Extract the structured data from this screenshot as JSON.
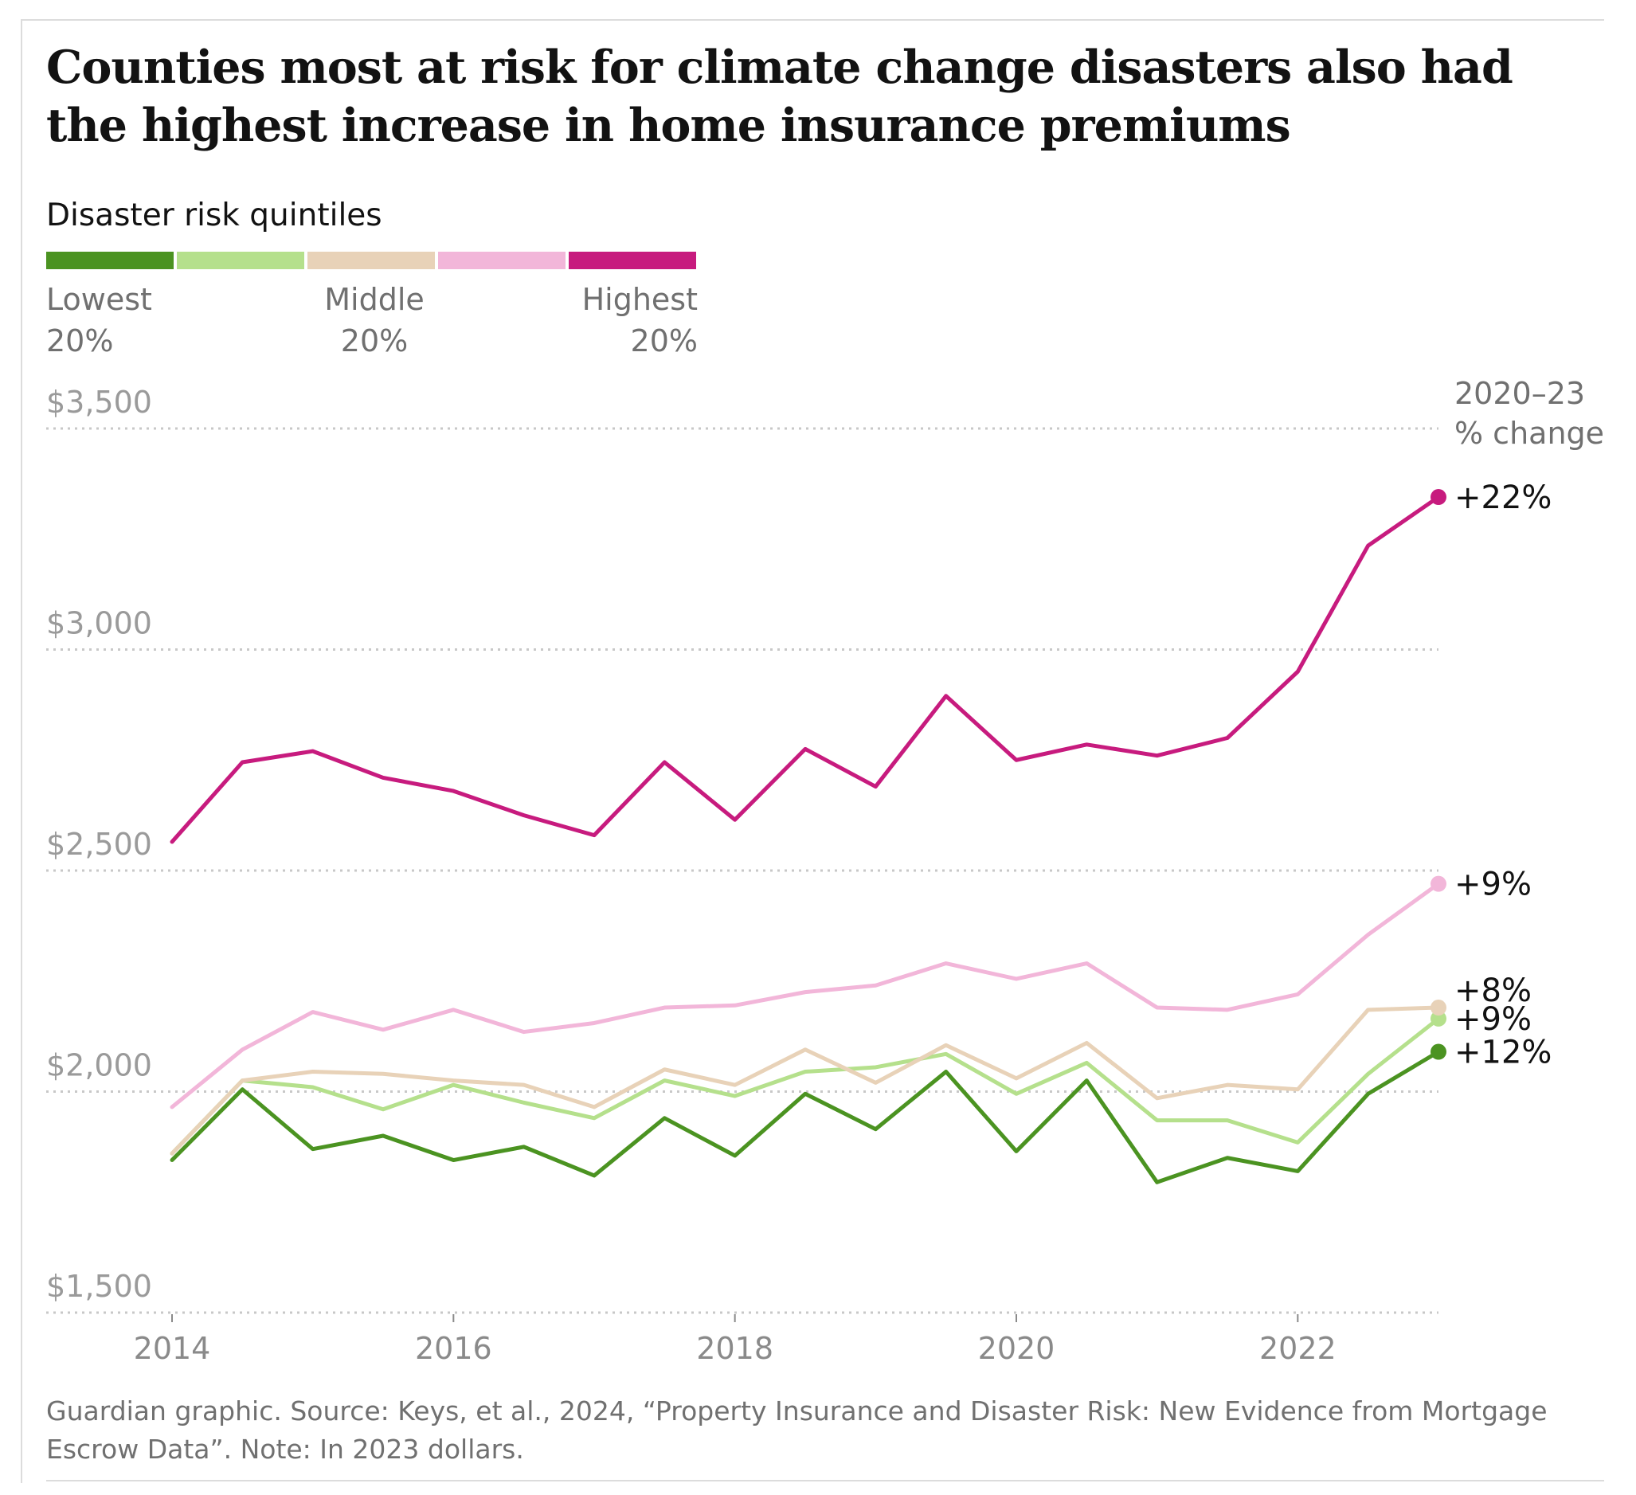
{
  "title": "Counties most at risk for climate change disasters also had the highest increase in home insurance premiums",
  "legend": {
    "title": "Disaster risk quintiles",
    "colors": [
      "#4b9321",
      "#b5e08c",
      "#e8d2b8",
      "#f2b6d9",
      "#c71b7e"
    ],
    "low_label": "Lowest",
    "low_sub": "20%",
    "mid_label": "Middle",
    "mid_sub": "20%",
    "high_label": "Highest",
    "high_sub": "20%"
  },
  "annotation_header": [
    "2020–23",
    "% change"
  ],
  "footnote": "Guardian graphic. Source: Keys, et al., 2024, “Property Insurance and Disaster Risk: New Evidence from Mortgage Escrow Data”. Note: In 2023 dollars.",
  "chart_data": {
    "type": "line",
    "x": [
      2014,
      2014.5,
      2015,
      2015.5,
      2016,
      2016.5,
      2017,
      2017.5,
      2018,
      2018.5,
      2019,
      2019.5,
      2020,
      2020.5,
      2021,
      2021.5,
      2022,
      2022.5,
      2023
    ],
    "ylim": [
      1500,
      3500
    ],
    "yticks": [
      1500,
      2000,
      2500,
      3000,
      3500
    ],
    "ytick_labels": [
      "$1,500",
      "$2,000",
      "$2,500",
      "$3,000",
      "$3,500"
    ],
    "xticks": [
      2014,
      2016,
      2018,
      2020,
      2022
    ],
    "xtick_labels": [
      "2014",
      "2016",
      "2018",
      "2020",
      "2022"
    ],
    "grid": "horizontal dotted",
    "series": [
      {
        "color": "#4b9321",
        "end_label": "+12%",
        "values": [
          1845,
          2005,
          1870,
          1900,
          1845,
          1875,
          1810,
          1940,
          1855,
          1995,
          1915,
          2045,
          1865,
          2025,
          1795,
          1850,
          1820,
          1995,
          2090
        ]
      },
      {
        "color": "#b5e08c",
        "end_label": "+9%",
        "values": [
          1860,
          2025,
          2010,
          1960,
          2015,
          1975,
          1940,
          2025,
          1990,
          2045,
          2055,
          2085,
          1995,
          2065,
          1935,
          1935,
          1885,
          2040,
          2165
        ]
      },
      {
        "color": "#e8d2b8",
        "end_label": "+8%",
        "values": [
          1860,
          2025,
          2045,
          2040,
          2025,
          2015,
          1965,
          2050,
          2015,
          2095,
          2020,
          2105,
          2030,
          2110,
          1985,
          2015,
          2005,
          2185,
          2190
        ]
      },
      {
        "color": "#f2b6d9",
        "end_label": "+9%",
        "values": [
          1965,
          2095,
          2180,
          2140,
          2185,
          2135,
          2155,
          2190,
          2195,
          2225,
          2240,
          2290,
          2255,
          2290,
          2190,
          2185,
          2220,
          2355,
          2470
        ]
      },
      {
        "color": "#c71b7e",
        "end_label": "+22%",
        "values": [
          2565,
          2745,
          2770,
          2710,
          2680,
          2625,
          2580,
          2745,
          2615,
          2775,
          2690,
          2895,
          2750,
          2785,
          2760,
          2800,
          2950,
          3235,
          3345
        ]
      }
    ]
  }
}
